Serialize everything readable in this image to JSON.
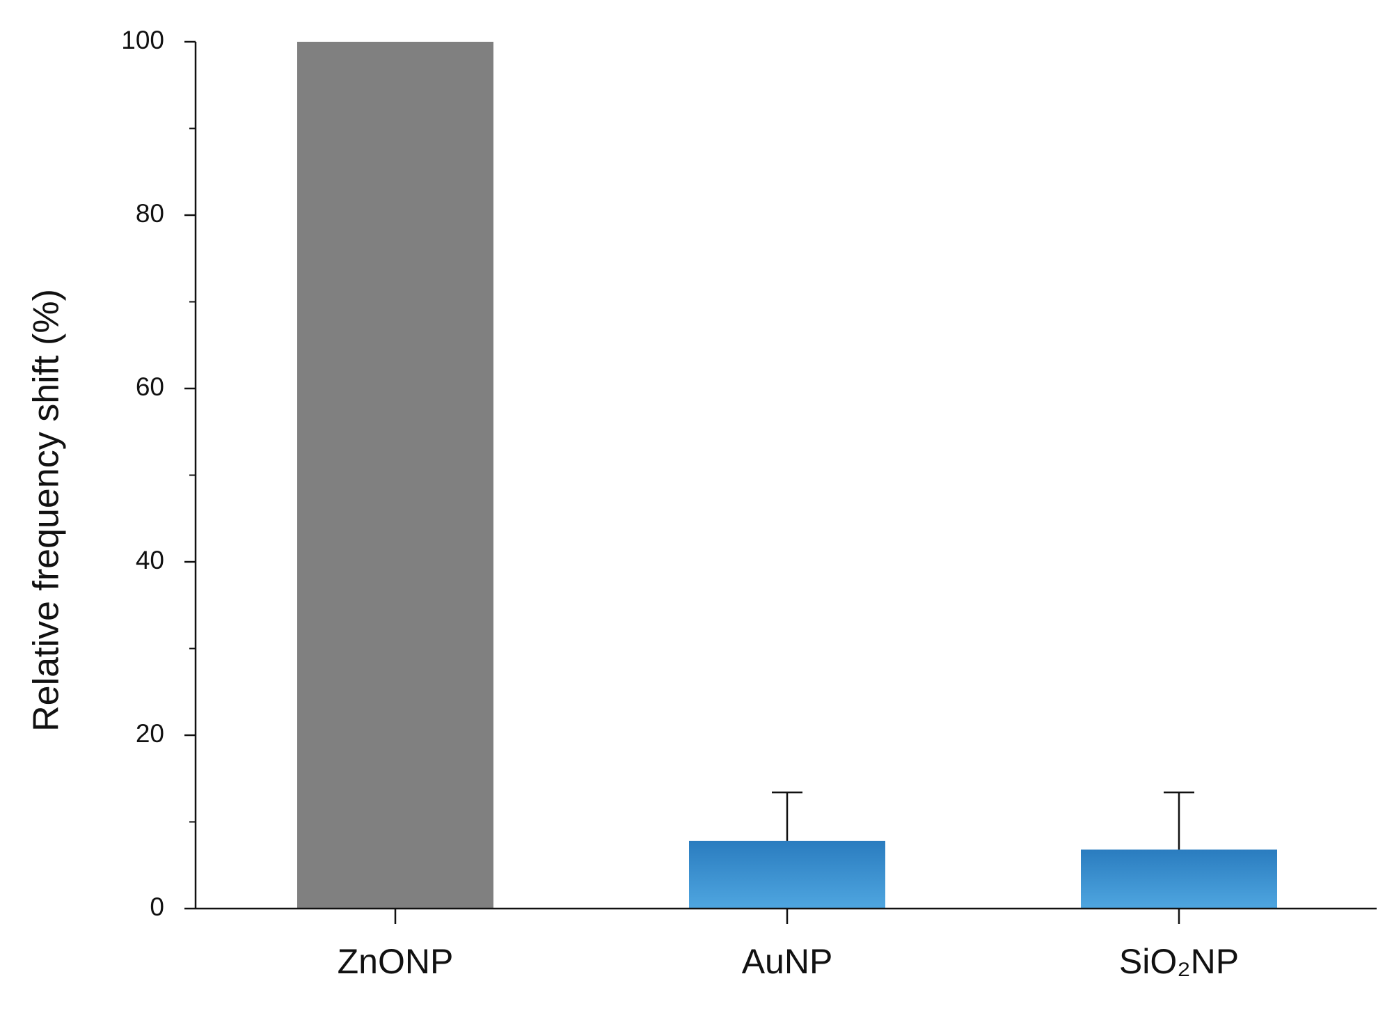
{
  "chart_data": {
    "type": "bar",
    "y_label": "Relative frequency shift (%)",
    "categories": [
      "ZnONP",
      "AuNP",
      "SiO₂NP"
    ],
    "values": [
      100,
      7.8,
      6.8
    ],
    "errors": [
      null,
      5.6,
      6.6
    ],
    "colors": [
      "#808080",
      "#2f86c8",
      "#2f86c8"
    ],
    "ylim": [
      0,
      100
    ],
    "yticks": [
      0,
      20,
      40,
      60,
      80,
      100
    ],
    "yticks_minor": [
      10,
      30,
      50,
      70,
      90
    ],
    "grid": false
  }
}
